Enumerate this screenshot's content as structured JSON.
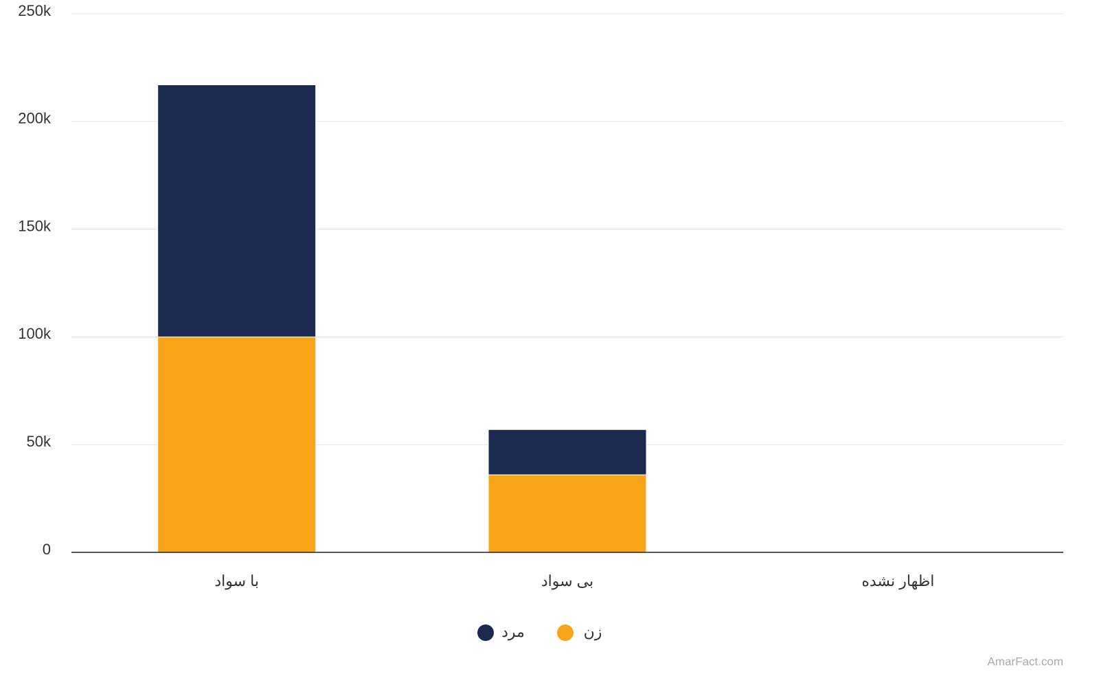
{
  "chart_data": {
    "type": "stacked_bar",
    "categories": [
      "با سواد",
      "بی سواد",
      "اظهار نشده"
    ],
    "series": [
      {
        "name": "زن",
        "color": "#f9a51a",
        "values": [
          100000,
          36000,
          0
        ]
      },
      {
        "name": "مرد",
        "color": "#1b2a4e",
        "values": [
          117000,
          21000,
          0
        ]
      }
    ],
    "ylim": [
      0,
      250000
    ],
    "yticks": [
      0,
      {
        "value": 50000,
        "label": "50k"
      },
      {
        "value": 100000,
        "label": "100k"
      },
      {
        "value": 150000,
        "label": "150k"
      },
      {
        "value": 200000,
        "label": "200k"
      },
      {
        "value": 250000,
        "label": "250k"
      }
    ],
    "grid": true,
    "source": "AmarFact.com"
  }
}
